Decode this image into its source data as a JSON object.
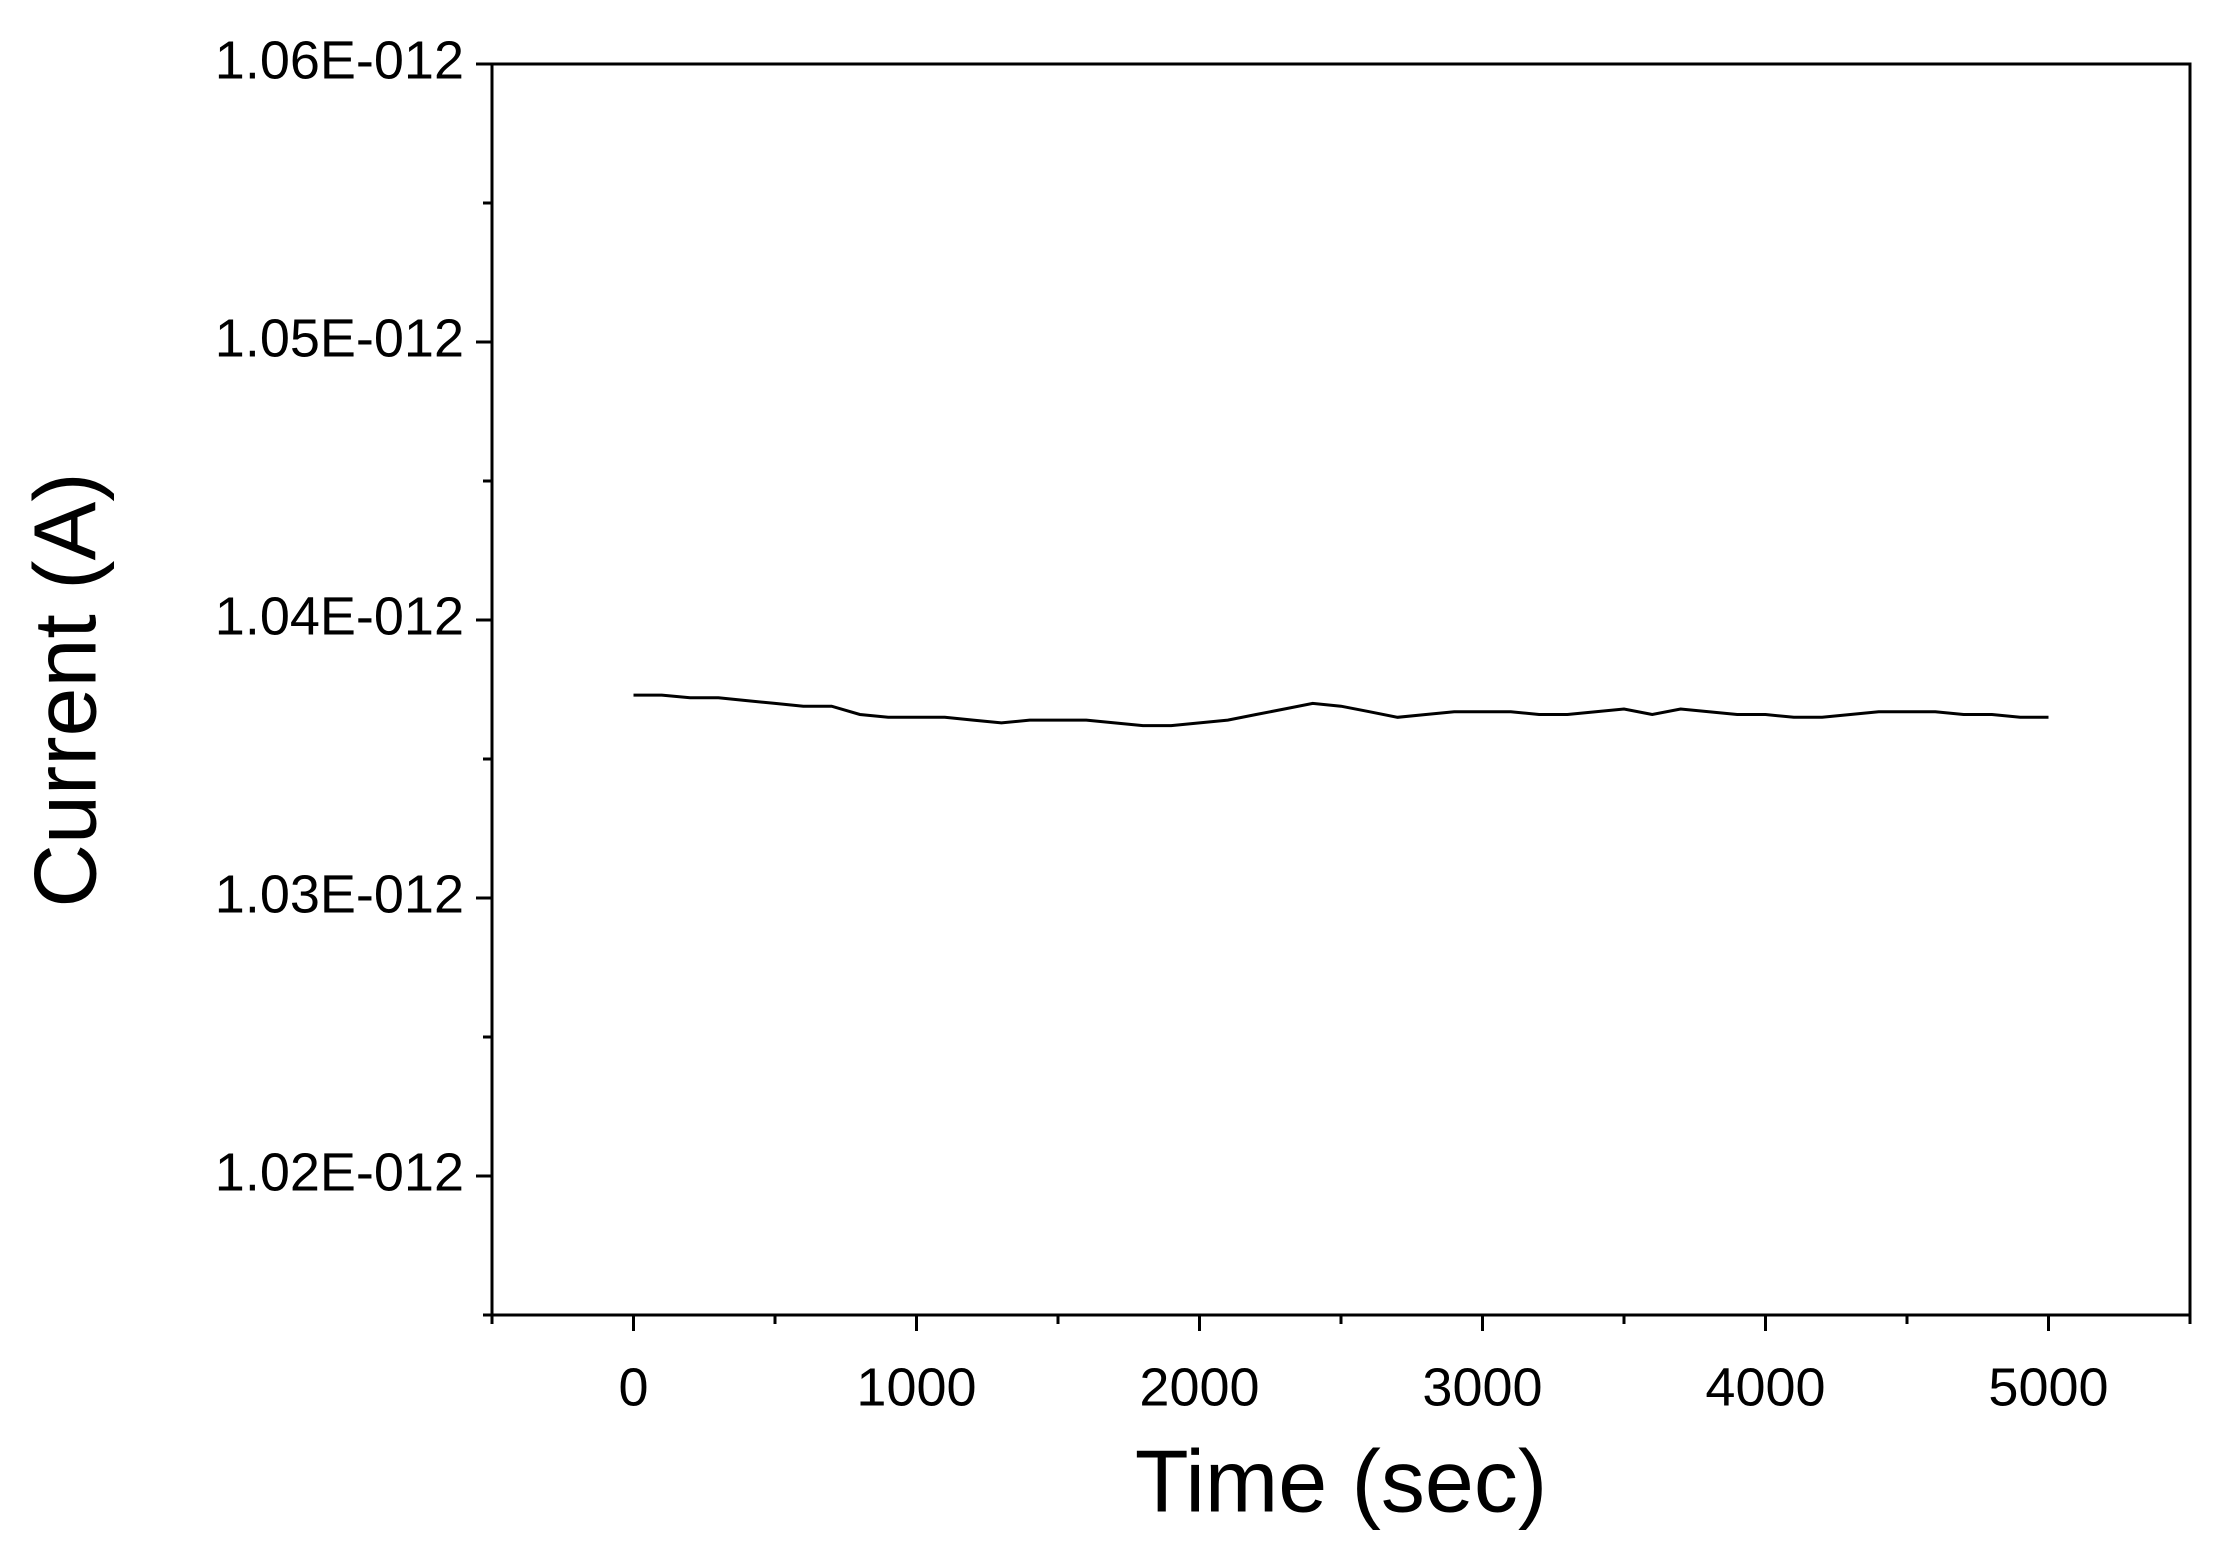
{
  "chart_data": {
    "type": "line",
    "xlabel": "Time (sec)",
    "ylabel": "Current (A)",
    "x": [
      0,
      100,
      200,
      300,
      400,
      500,
      600,
      700,
      800,
      900,
      1000,
      1100,
      1200,
      1300,
      1400,
      1500,
      1600,
      1700,
      1800,
      1900,
      2000,
      2100,
      2200,
      2300,
      2400,
      2500,
      2600,
      2700,
      2800,
      2900,
      3000,
      3100,
      3200,
      3300,
      3400,
      3500,
      3600,
      3700,
      3800,
      3900,
      4000,
      4100,
      4200,
      4300,
      4400,
      4500,
      4600,
      4700,
      4800,
      4900,
      5000
    ],
    "series": [
      {
        "color": "#000000",
        "values": [
          1.0373e-12,
          1.0373e-12,
          1.0372e-12,
          1.0372e-12,
          1.0371e-12,
          1.037e-12,
          1.0369e-12,
          1.0369e-12,
          1.0366e-12,
          1.0365e-12,
          1.0365e-12,
          1.0365e-12,
          1.0364e-12,
          1.0363e-12,
          1.0364e-12,
          1.0364e-12,
          1.0364e-12,
          1.0363e-12,
          1.0362e-12,
          1.0362e-12,
          1.0363e-12,
          1.0364e-12,
          1.0366e-12,
          1.0368e-12,
          1.037e-12,
          1.0369e-12,
          1.0367e-12,
          1.0365e-12,
          1.0366e-12,
          1.0367e-12,
          1.0367e-12,
          1.0367e-12,
          1.0366e-12,
          1.0366e-12,
          1.0367e-12,
          1.0368e-12,
          1.0366e-12,
          1.0368e-12,
          1.0367e-12,
          1.0366e-12,
          1.0366e-12,
          1.0365e-12,
          1.0365e-12,
          1.0366e-12,
          1.0367e-12,
          1.0367e-12,
          1.0367e-12,
          1.0366e-12,
          1.0366e-12,
          1.0365e-12,
          1.0365e-12
        ]
      }
    ],
    "xlim": [
      -500,
      5500
    ],
    "xticks": [
      0,
      1000,
      2000,
      3000,
      4000,
      5000
    ],
    "xminorticks": [
      -500,
      500,
      1500,
      2500,
      3500,
      4500,
      5500
    ],
    "ylim": [
      1.015e-12,
      1.06e-12
    ],
    "yticks": [
      {
        "value": 1.02e-12,
        "label": "1.02E-012"
      },
      {
        "value": 1.03e-12,
        "label": "1.03E-012"
      },
      {
        "value": 1.04e-12,
        "label": "1.04E-012"
      },
      {
        "value": 1.05e-12,
        "label": "1.05E-012"
      },
      {
        "value": 1.06e-12,
        "label": "1.06E-012"
      }
    ],
    "yminorticks": [
      1.015e-12,
      1.025e-12,
      1.035e-12,
      1.045e-12,
      1.055e-12
    ]
  }
}
